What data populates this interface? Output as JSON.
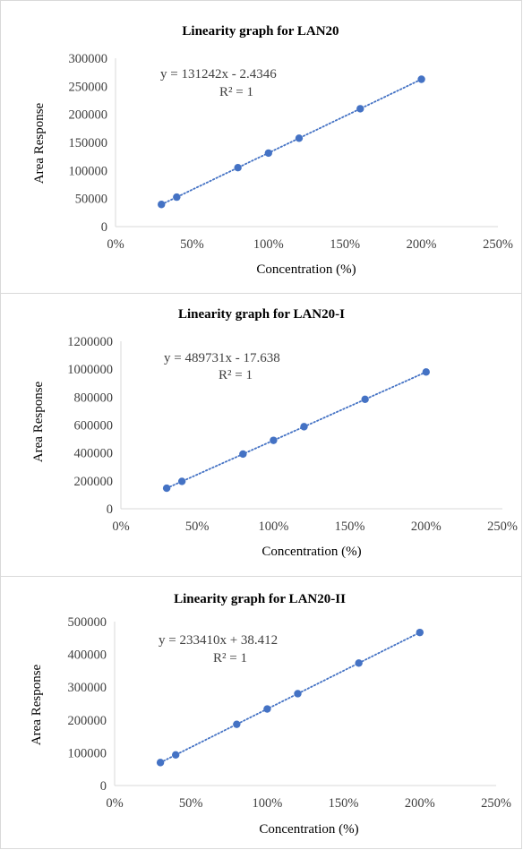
{
  "colors": {
    "marker": "#4472c4",
    "trendline": "#4472c4",
    "axis": "#d9d9d9",
    "text": "#404040"
  },
  "chart_data": [
    {
      "type": "scatter",
      "title": "Linearity graph for LAN20",
      "xlabel": "Concentration (%)",
      "ylabel": "Area Response",
      "xlim": [
        0,
        250
      ],
      "ylim": [
        0,
        300000
      ],
      "x_ticks": [
        "0%",
        "50%",
        "100%",
        "150%",
        "200%",
        "250%"
      ],
      "y_ticks": [
        "0",
        "50000",
        "100000",
        "150000",
        "200000",
        "250000",
        "300000"
      ],
      "grid": false,
      "series": [
        {
          "x": [
            30,
            40,
            80,
            100,
            120,
            160,
            200
          ],
          "y": [
            39500,
            52500,
            105000,
            131000,
            157500,
            210000,
            262500
          ]
        }
      ],
      "trendline": {
        "slope": 131242,
        "intercept": -2.4346
      },
      "equation": "y = 131242x - 2.4346",
      "r_squared": "R² = 1"
    },
    {
      "type": "scatter",
      "title": "Linearity graph for LAN20-I",
      "xlabel": "Concentration (%)",
      "ylabel": "Area Response",
      "xlim": [
        0,
        250
      ],
      "ylim": [
        0,
        1200000
      ],
      "x_ticks": [
        "0%",
        "50%",
        "100%",
        "150%",
        "200%",
        "250%"
      ],
      "y_ticks": [
        "0",
        "200000",
        "400000",
        "600000",
        "800000",
        "1000000",
        "1200000"
      ],
      "grid": false,
      "series": [
        {
          "x": [
            30,
            40,
            80,
            100,
            120,
            160,
            200
          ],
          "y": [
            147000,
            196000,
            392000,
            490000,
            588000,
            784000,
            980000
          ]
        }
      ],
      "trendline": {
        "slope": 489731,
        "intercept": -17.638
      },
      "equation": "y = 489731x - 17.638",
      "r_squared": "R² = 1"
    },
    {
      "type": "scatter",
      "title": "Linearity graph for LAN20-II",
      "xlabel": "Concentration (%)",
      "ylabel": "Area Response",
      "xlim": [
        0,
        250
      ],
      "ylim": [
        0,
        500000
      ],
      "x_ticks": [
        "0%",
        "50%",
        "100%",
        "150%",
        "200%",
        "250%"
      ],
      "y_ticks": [
        "0",
        "100000",
        "200000",
        "300000",
        "400000",
        "500000"
      ],
      "grid": false,
      "series": [
        {
          "x": [
            30,
            40,
            80,
            100,
            120,
            160,
            200
          ],
          "y": [
            70000,
            93400,
            186700,
            233400,
            280100,
            373500,
            466800
          ]
        }
      ],
      "trendline": {
        "slope": 233410,
        "intercept": 38.412
      },
      "equation": "y = 233410x + 38.412",
      "r_squared": "R² = 1"
    }
  ]
}
